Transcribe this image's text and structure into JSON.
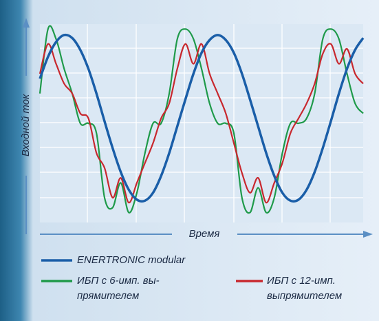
{
  "chart_data": {
    "type": "line",
    "y_label": "Входной ток",
    "x_label": "Время",
    "xlim": [
      0,
      100
    ],
    "ylim": [
      -1,
      1
    ],
    "x": [
      0,
      2.5,
      5,
      7.5,
      10,
      12.5,
      15,
      17.5,
      20,
      22.5,
      25,
      27.5,
      30,
      32.5,
      35,
      37.5,
      40,
      42.5,
      45,
      47.5,
      50,
      52.5,
      55,
      57.5,
      60,
      62.5,
      65,
      67.5,
      70,
      72.5,
      75,
      77.5,
      80,
      82.5,
      85,
      87.5,
      90,
      92.5,
      95,
      97.5,
      100
    ],
    "series": [
      {
        "name": "ENERTRONIC modular",
        "color": "#1a5ea8",
        "values": [
          0.45,
          0.67,
          0.82,
          0.89,
          0.86,
          0.74,
          0.55,
          0.3,
          0.02,
          -0.25,
          -0.49,
          -0.67,
          -0.77,
          -0.78,
          -0.7,
          -0.53,
          -0.3,
          -0.03,
          0.24,
          0.5,
          0.71,
          0.84,
          0.89,
          0.84,
          0.71,
          0.5,
          0.24,
          -0.03,
          -0.3,
          -0.53,
          -0.7,
          -0.78,
          -0.77,
          -0.67,
          -0.49,
          -0.25,
          0.02,
          0.3,
          0.55,
          0.74,
          0.86
        ]
      },
      {
        "name": "ИБП с 6-имп. вы-\nпрямителем",
        "color": "#1f9a4a",
        "values": [
          0.3,
          0.95,
          0.85,
          0.55,
          0.3,
          0.0,
          0.0,
          -0.1,
          -0.75,
          -0.85,
          -0.6,
          -0.9,
          -0.7,
          -0.3,
          0.0,
          0.0,
          0.3,
          0.85,
          0.95,
          0.85,
          0.55,
          0.2,
          0.0,
          0.0,
          -0.1,
          -0.75,
          -0.9,
          -0.65,
          -0.9,
          -0.75,
          -0.3,
          0.0,
          0.0,
          0.05,
          0.3,
          0.85,
          0.95,
          0.85,
          0.5,
          0.2,
          0.1
        ]
      },
      {
        "name": "ИБП с 12-имп.\nвыпрямителем",
        "color": "#c8282e",
        "values": [
          0.5,
          0.8,
          0.6,
          0.4,
          0.3,
          0.1,
          0.05,
          -0.3,
          -0.45,
          -0.75,
          -0.55,
          -0.8,
          -0.6,
          -0.4,
          -0.2,
          0.05,
          0.2,
          0.55,
          0.8,
          0.6,
          0.8,
          0.5,
          0.3,
          0.1,
          -0.2,
          -0.5,
          -0.7,
          -0.55,
          -0.8,
          -0.6,
          -0.4,
          -0.1,
          0.05,
          0.2,
          0.4,
          0.7,
          0.8,
          0.6,
          0.75,
          0.5,
          0.4
        ]
      }
    ]
  }
}
